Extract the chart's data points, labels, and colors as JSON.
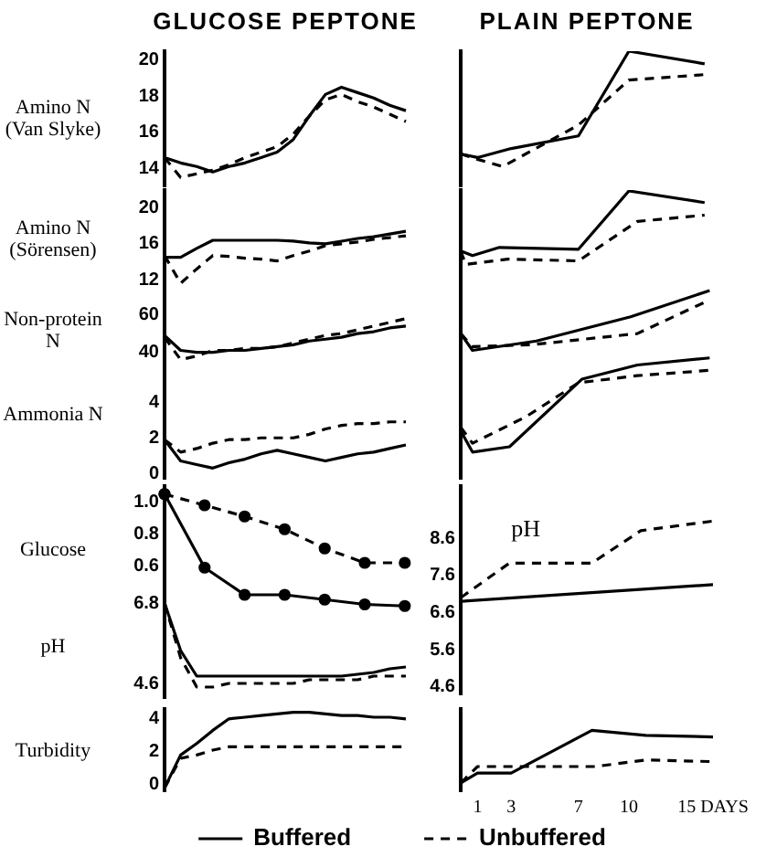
{
  "chart_data": [
    {
      "type": "line",
      "title": "GLUCOSE PEPTONE",
      "ylabel": "Amino N (Van Slyke)",
      "categories": [
        null,
        null,
        null,
        null,
        null,
        null,
        null,
        null,
        null,
        null,
        null,
        null,
        null,
        null,
        null,
        null
      ],
      "ylim": [
        13,
        20.5
      ],
      "yticks": [
        14,
        16,
        18,
        20
      ],
      "tick_labels": "y",
      "series": [
        {
          "color": "#000000",
          "values": [
            14.6,
            14.3,
            14.1,
            13.8,
            14.1,
            14.3,
            14.6,
            14.9,
            15.6,
            16.9,
            18.1,
            18.5,
            18.2,
            17.9,
            17.5,
            17.2
          ]
        },
        {
          "color": "#000000",
          "line_style": "dashed",
          "values": [
            14.6,
            13.5,
            13.7,
            13.9,
            14.2,
            14.6,
            14.9,
            15.2,
            15.9,
            16.9,
            17.8,
            18.1,
            17.7,
            17.4,
            17.0,
            16.6
          ]
        }
      ]
    },
    {
      "type": "line",
      "title": "PLAIN PEPTONE",
      "xlim": [
        0,
        15
      ],
      "ylim": [
        13,
        20.5
      ],
      "tick_labels": false,
      "series": [
        {
          "color": "#000000",
          "x": [
            0,
            1,
            3,
            7,
            10,
            14.5
          ],
          "values": [
            14.8,
            14.6,
            15.1,
            15.8,
            20.5,
            19.8
          ]
        },
        {
          "color": "#000000",
          "line_style": "dashed",
          "x": [
            0,
            1,
            2.5,
            7,
            10,
            14.5
          ],
          "values": [
            14.8,
            14.5,
            14.1,
            16.4,
            18.9,
            19.2
          ]
        }
      ]
    },
    {
      "type": "line",
      "ylabel": "Amino N (Sörensen)",
      "categories": [
        null,
        null,
        null,
        null,
        null,
        null,
        null,
        null,
        null,
        null,
        null,
        null,
        null,
        null,
        null,
        null
      ],
      "ylim": [
        11,
        22
      ],
      "yticks": [
        12,
        16,
        20
      ],
      "tick_labels": "y",
      "series": [
        {
          "color": "#000000",
          "values": [
            14.5,
            14.5,
            15.5,
            16.4,
            16.4,
            16.4,
            16.4,
            16.4,
            16.3,
            16.1,
            16.0,
            16.3,
            16.6,
            16.8,
            17.1,
            17.4
          ]
        },
        {
          "color": "#000000",
          "line_style": "dashed",
          "values": [
            14.7,
            11.6,
            13.2,
            14.7,
            14.6,
            14.4,
            14.3,
            14.1,
            14.7,
            15.2,
            15.8,
            16.0,
            16.2,
            16.5,
            16.7,
            16.9
          ]
        }
      ]
    },
    {
      "type": "line",
      "xlim": [
        0,
        15
      ],
      "ylim": [
        11,
        22
      ],
      "tick_labels": false,
      "series": [
        {
          "color": "#000000",
          "x": [
            0,
            0.7,
            2.3,
            7,
            10,
            14.5
          ],
          "values": [
            15.2,
            14.7,
            15.6,
            15.4,
            21.9,
            20.6
          ]
        },
        {
          "color": "#000000",
          "line_style": "dashed",
          "x": [
            0,
            0.3,
            2.8,
            7,
            10.5,
            14.5
          ],
          "values": [
            15.2,
            13.7,
            14.3,
            14.1,
            18.5,
            19.2
          ]
        }
      ]
    },
    {
      "type": "line",
      "ylabel": "Non-protein N",
      "categories": [
        null,
        null,
        null,
        null,
        null,
        null,
        null,
        null,
        null,
        null,
        null,
        null,
        null,
        null,
        null,
        null
      ],
      "ylim": [
        30,
        74
      ],
      "yticks": [
        40,
        60
      ],
      "tick_labels": "y",
      "series": [
        {
          "color": "#000000",
          "values": [
            49,
            41,
            40,
            40,
            41,
            41,
            42,
            43,
            44,
            46,
            47,
            48,
            50,
            51,
            53,
            54
          ]
        },
        {
          "color": "#000000",
          "line_style": "dashed",
          "values": [
            48,
            36,
            38,
            41,
            41,
            42,
            42,
            43,
            45,
            47,
            49,
            50,
            52,
            54,
            56,
            58
          ]
        }
      ]
    },
    {
      "type": "line",
      "xlim": [
        0,
        15
      ],
      "ylim": [
        30,
        74
      ],
      "tick_labels": false,
      "series": [
        {
          "color": "#000000",
          "x": [
            0,
            0.7,
            4.5,
            10.1,
            14.8
          ],
          "values": [
            50,
            41,
            46,
            59,
            73
          ]
        },
        {
          "color": "#000000",
          "line_style": "dashed",
          "x": [
            0,
            0.7,
            4.2,
            10.5,
            14.8
          ],
          "values": [
            50,
            43,
            44,
            50,
            68
          ]
        }
      ]
    },
    {
      "type": "line",
      "ylabel": "Ammonia N",
      "categories": [
        null,
        null,
        null,
        null,
        null,
        null,
        null,
        null,
        null,
        null,
        null,
        null,
        null,
        null,
        null,
        null
      ],
      "ylim": [
        -0.3,
        7
      ],
      "yticks": [
        0,
        2,
        4
      ],
      "tick_labels": "y",
      "series": [
        {
          "color": "#000000",
          "values": [
            1.9,
            0.7,
            0.5,
            0.3,
            0.6,
            0.8,
            1.1,
            1.3,
            1.1,
            0.9,
            0.7,
            0.9,
            1.1,
            1.2,
            1.4,
            1.6
          ]
        },
        {
          "color": "#000000",
          "line_style": "dashed",
          "values": [
            1.9,
            1.2,
            1.4,
            1.7,
            1.9,
            1.9,
            2.0,
            2.0,
            2.0,
            2.2,
            2.5,
            2.7,
            2.8,
            2.8,
            2.9,
            2.9
          ]
        }
      ]
    },
    {
      "type": "line",
      "xlim": [
        0,
        15
      ],
      "ylim": [
        -0.3,
        7
      ],
      "tick_labels": false,
      "series": [
        {
          "color": "#000000",
          "x": [
            0,
            0.7,
            2.9,
            7.2,
            10.5,
            14.8
          ],
          "values": [
            2.4,
            1.2,
            1.5,
            5.3,
            6.1,
            6.5
          ]
        },
        {
          "color": "#000000",
          "line_style": "dashed",
          "x": [
            0,
            0.7,
            3.9,
            7,
            10.5,
            14.8
          ],
          "values": [
            2.6,
            1.7,
            3.2,
            5.1,
            5.5,
            5.8
          ]
        }
      ]
    },
    {
      "type": "line",
      "ylabel": "Glucose",
      "categories": [
        null,
        null,
        null,
        null,
        null,
        null,
        null
      ],
      "ylim": [
        0.3,
        1.1
      ],
      "yticks": [
        0.6,
        0.8,
        {
          "value": 1,
          "label": "1.0"
        }
      ],
      "tick_labels": "y",
      "series": [
        {
          "color": "#000000",
          "marker": "circle",
          "values": [
            1.05,
            0.59,
            0.42,
            0.42,
            0.39,
            0.36,
            0.35
          ]
        },
        {
          "color": "#000000",
          "marker": "circle",
          "line_style": "dashed",
          "values": [
            1.05,
            0.98,
            0.91,
            0.83,
            0.71,
            0.62,
            0.62
          ]
        }
      ]
    },
    {
      "type": "line",
      "annotations": [
        "pH"
      ],
      "xlim": [
        0,
        15
      ],
      "ylim": [
        4.4,
        10
      ],
      "yticks": [
        4.6,
        5.6,
        6.6,
        7.6,
        8.6
      ],
      "tick_labels": "y",
      "series": [
        {
          "color": "#000000",
          "x": [
            0,
            15
          ],
          "values": [
            6.9,
            7.35
          ]
        },
        {
          "color": "#000000",
          "line_style": "dashed",
          "x": [
            0,
            2.9,
            7.8,
            10.7,
            15
          ],
          "values": [
            7.0,
            7.93,
            7.93,
            8.8,
            9.06
          ]
        }
      ]
    },
    {
      "type": "line",
      "ylabel": "pH",
      "categories": [
        null,
        null,
        null,
        null,
        null,
        null,
        null,
        null,
        null,
        null,
        null,
        null,
        null,
        null,
        null,
        null
      ],
      "ylim": [
        4.2,
        7.0
      ],
      "yticks": [
        4.6,
        6.8
      ],
      "tick_labels": "y",
      "series": [
        {
          "color": "#000000",
          "values": [
            6.8,
            5.5,
            4.8,
            4.8,
            4.8,
            4.8,
            4.8,
            4.8,
            4.8,
            4.8,
            4.8,
            4.8,
            4.85,
            4.9,
            5.0,
            5.05
          ]
        },
        {
          "color": "#000000",
          "line_style": "dashed",
          "values": [
            6.8,
            5.3,
            4.5,
            4.5,
            4.6,
            4.6,
            4.6,
            4.6,
            4.6,
            4.7,
            4.7,
            4.7,
            4.7,
            4.8,
            4.8,
            4.8
          ]
        }
      ]
    },
    {
      "type": "line",
      "ylabel": "Turbidity",
      "categories": [
        null,
        null,
        null,
        null,
        null,
        null,
        null,
        null,
        null,
        null,
        null,
        null,
        null,
        null,
        null,
        null
      ],
      "ylim": [
        -0.4,
        4.6
      ],
      "yticks": [
        0,
        2,
        4
      ],
      "tick_labels": "y",
      "series": [
        {
          "color": "#000000",
          "values": [
            -0.2,
            1.8,
            2.5,
            3.3,
            4.0,
            4.1,
            4.2,
            4.3,
            4.4,
            4.4,
            4.3,
            4.2,
            4.2,
            4.1,
            4.1,
            4.0
          ]
        },
        {
          "color": "#000000",
          "line_style": "dashed",
          "values": [
            -0.2,
            1.6,
            1.8,
            2.1,
            2.3,
            2.3,
            2.3,
            2.3,
            2.3,
            2.3,
            2.3,
            2.3,
            2.3,
            2.3,
            2.3,
            2.3
          ]
        }
      ]
    },
    {
      "type": "line",
      "xlim": [
        0,
        15
      ],
      "ylim": [
        -0.4,
        4.6
      ],
      "xticks": [
        1,
        3,
        7,
        10,
        {
          "value": 15,
          "label": "15 DAYS"
        }
      ],
      "tick_labels": "x",
      "legend": "bottom",
      "series": [
        {
          "name": "Buffered",
          "color": "#000000",
          "x": [
            0,
            1,
            3,
            7.8,
            11,
            15
          ],
          "values": [
            0.1,
            0.7,
            0.7,
            3.3,
            3.0,
            2.9
          ]
        },
        {
          "name": "Unbuffered",
          "color": "#000000",
          "line_style": "dashed",
          "x": [
            0,
            1,
            3,
            8,
            11,
            15
          ],
          "values": [
            0.1,
            1.1,
            1.1,
            1.1,
            1.5,
            1.4
          ]
        }
      ]
    }
  ]
}
